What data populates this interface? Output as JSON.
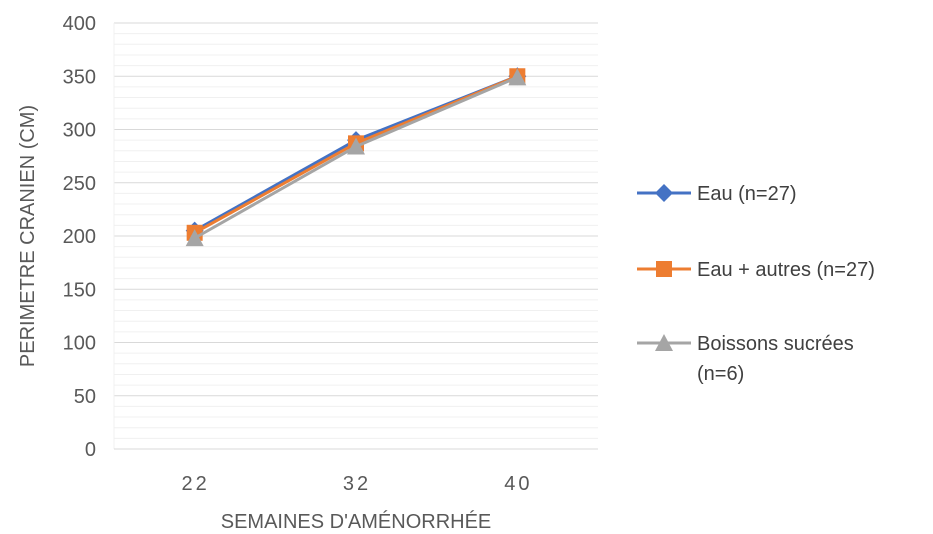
{
  "chart_data": {
    "type": "line",
    "categories": [
      "22",
      "32",
      "40"
    ],
    "series": [
      {
        "name": "Eau (n=27)",
        "values": [
          205,
          290,
          350
        ],
        "color": "#4472C4",
        "marker": "diamond"
      },
      {
        "name": "Eau + autres (n=27)",
        "values": [
          203,
          287,
          350
        ],
        "color": "#ED7D31",
        "marker": "square"
      },
      {
        "name_lines": [
          "Boissons sucrées",
          "(n=6)"
        ],
        "values": [
          198,
          284,
          349
        ],
        "color": "#A5A5A5",
        "marker": "triangle"
      }
    ],
    "xlabel": "SEMAINES D'AMÉNORRHÉE",
    "ylabel": "PERIMETRE CRANIEN (CM)",
    "ylim": [
      0,
      400
    ],
    "yticks": [
      "0",
      "50",
      "100",
      "150",
      "200",
      "250",
      "300",
      "350",
      "400"
    ],
    "grid": true,
    "legend_position": "right"
  }
}
